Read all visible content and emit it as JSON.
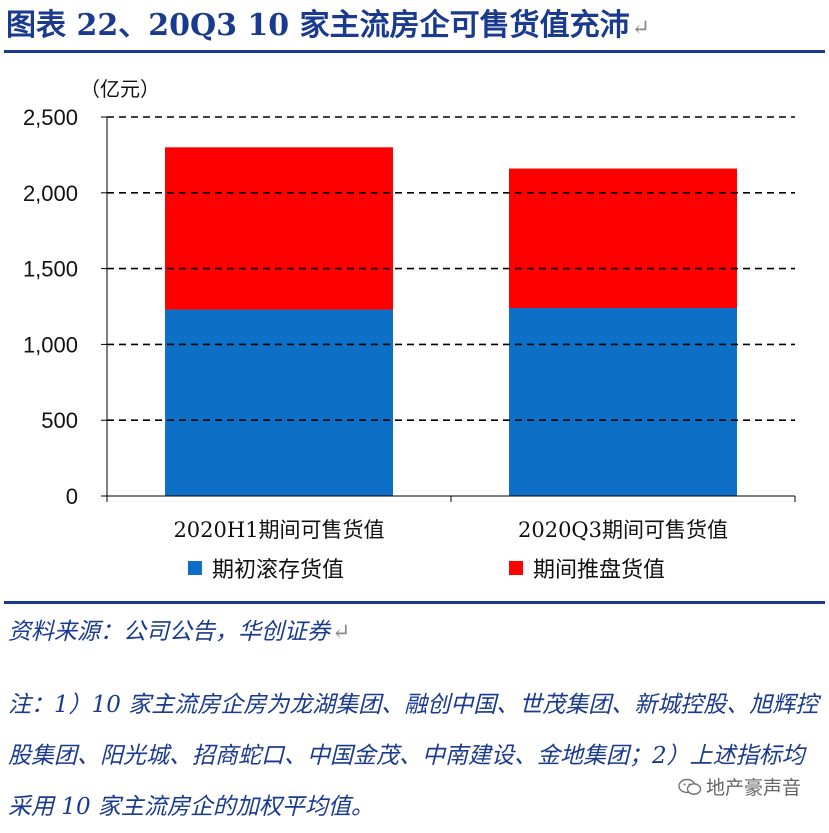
{
  "header": {
    "title": "图表 22、20Q3 10 家主流房企可售货值充沛",
    "return_glyph": "↵"
  },
  "chart_data": {
    "type": "bar",
    "stacked": true,
    "unit": "（亿元）",
    "categories": [
      "2020H1期间可售货值",
      "2020Q3期间可售货值"
    ],
    "series": [
      {
        "name": "期初滚存货值",
        "values": [
          1230,
          1240
        ],
        "color": "#0e6fc7"
      },
      {
        "name": "期间推盘货值",
        "values": [
          1070,
          920
        ],
        "color": "#ff0000"
      }
    ],
    "ylim": [
      0,
      2500
    ],
    "yticks": [
      0,
      500,
      1000,
      1500,
      2000,
      2500
    ],
    "ytick_labels": [
      "0",
      "500",
      "1,000",
      "1,500",
      "2,000",
      "2,500"
    ],
    "grid": "dashed horizontal",
    "legend": "bottom"
  },
  "source": "资料来源：公司公告，华创证券",
  "note": "注：1）10 家主流房企房为龙湖集团、融创中国、世茂集团、新城控股、旭辉控股集团、阳光城、招商蛇口、中国金茂、中南建设、金地集团；2）上述指标均采用 10 家主流房企的加权平均值。",
  "watermark": "地产豪声音"
}
